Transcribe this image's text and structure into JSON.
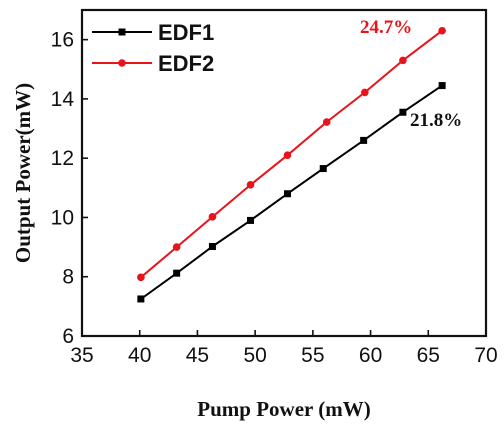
{
  "chart_data": {
    "type": "line",
    "xlabel": "Pump Power (mW)",
    "ylabel": "Output Power(mW)",
    "xlim": [
      35,
      70
    ],
    "ylim": [
      6,
      17
    ],
    "xticks": [
      35,
      40,
      45,
      50,
      55,
      60,
      65,
      70
    ],
    "yticks": [
      6,
      8,
      10,
      12,
      14,
      16
    ],
    "grid": false,
    "legend_position": "top-left",
    "series": [
      {
        "name": "EDF1",
        "color": "#000000",
        "marker": "square",
        "x": [
          40.1,
          43.2,
          46.3,
          49.6,
          52.8,
          55.9,
          59.4,
          62.8,
          66.2
        ],
        "y": [
          7.25,
          8.12,
          9.02,
          9.9,
          10.8,
          11.65,
          12.6,
          13.55,
          14.45
        ]
      },
      {
        "name": "EDF2",
        "color": "#e8141c",
        "marker": "circle",
        "x": [
          40.1,
          43.2,
          46.3,
          49.6,
          52.8,
          56.2,
          59.5,
          62.8,
          66.2
        ],
        "y": [
          7.98,
          9.0,
          10.02,
          11.1,
          12.1,
          13.22,
          14.22,
          15.3,
          16.3
        ]
      }
    ],
    "annotations": [
      {
        "text": "24.7%",
        "series": "EDF2",
        "color": "#e8141c"
      },
      {
        "text": "21.8%",
        "series": "EDF1",
        "color": "#111111"
      }
    ]
  }
}
